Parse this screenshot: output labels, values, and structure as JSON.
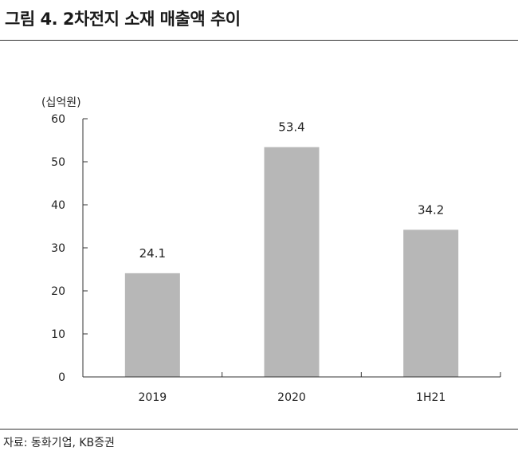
{
  "figure": {
    "title": "그림 4. 2차전지 소재 매출액 추이",
    "unit": "(십억원)",
    "source": "자료: 동화기업, KB증권"
  },
  "chart_data": {
    "type": "bar",
    "title": "그림 4. 2차전지 소재 매출액 추이",
    "xlabel": "",
    "ylabel": "(십억원)",
    "categories": [
      "2019",
      "2020",
      "1H21"
    ],
    "values": [
      24.1,
      53.4,
      34.2
    ],
    "data_labels": [
      "24.1",
      "53.4",
      "34.2"
    ],
    "ylim": [
      0,
      60
    ],
    "yticks": [
      0,
      10,
      20,
      30,
      40,
      50,
      60
    ],
    "grid": false,
    "legend": "none",
    "bar_color": "#b7b7b7"
  }
}
